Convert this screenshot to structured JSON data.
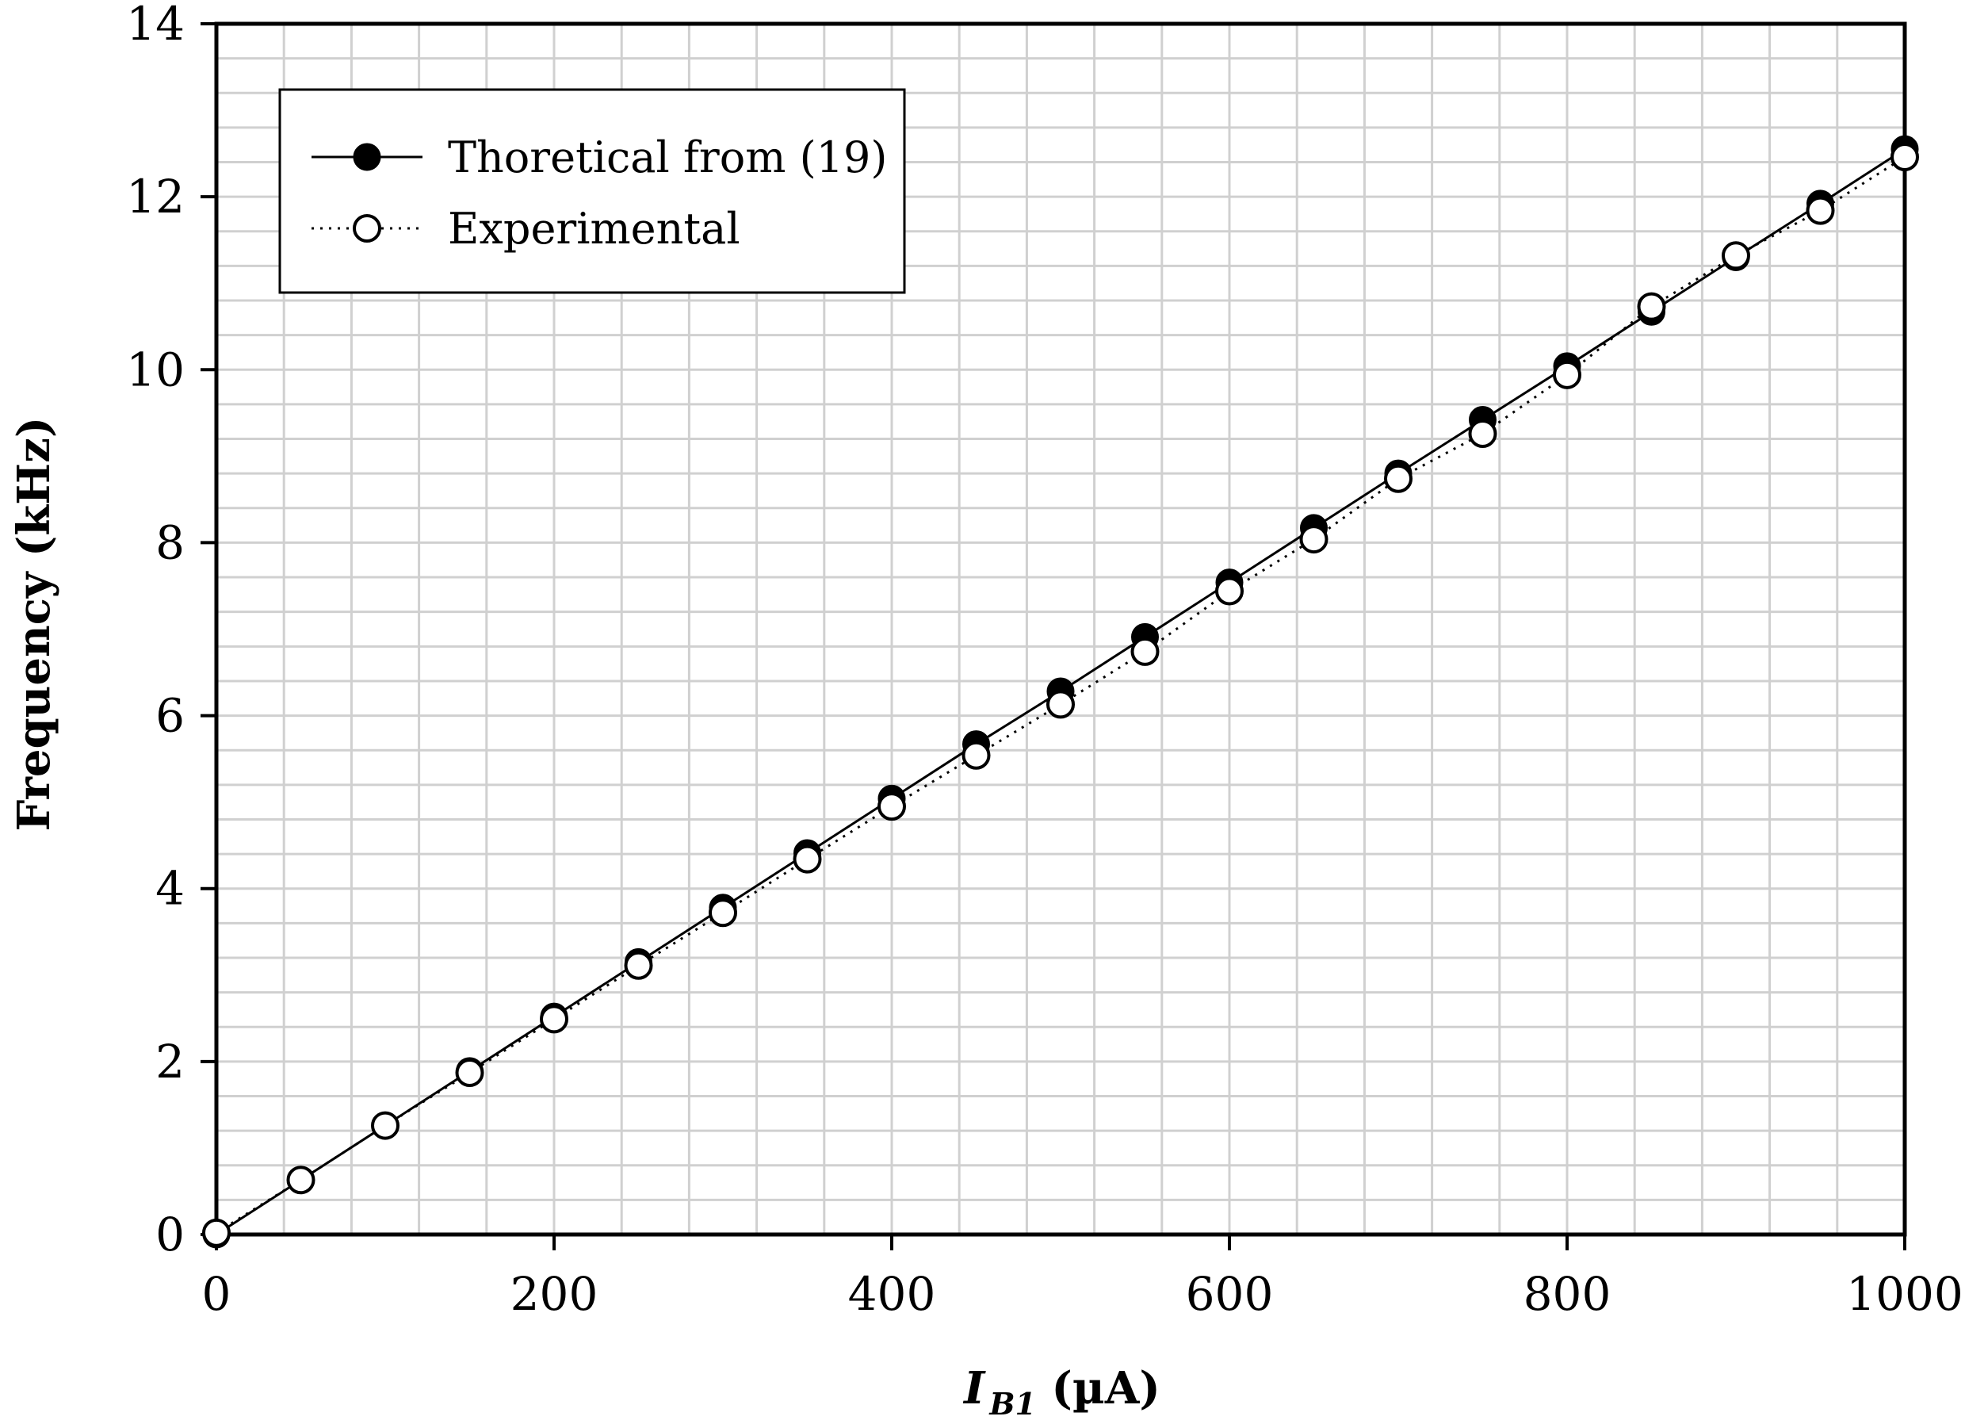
{
  "chart_data": {
    "type": "line",
    "x": [
      0,
      50,
      100,
      150,
      200,
      250,
      300,
      350,
      400,
      450,
      500,
      550,
      600,
      650,
      700,
      750,
      800,
      850,
      900,
      950,
      1000
    ],
    "series": [
      {
        "name": "Thoretical from (19)",
        "values": [
          0,
          0.63,
          1.26,
          1.89,
          2.52,
          3.15,
          3.78,
          4.41,
          5.04,
          5.67,
          6.28,
          6.91,
          7.54,
          8.17,
          8.8,
          9.42,
          10.04,
          10.67,
          11.3,
          11.92,
          12.55
        ],
        "style": "solid",
        "marker": "filled-circle",
        "color": "#000000"
      },
      {
        "name": "Experimental",
        "values": [
          0.02,
          0.63,
          1.26,
          1.87,
          2.49,
          3.11,
          3.72,
          4.34,
          4.95,
          5.54,
          6.13,
          6.74,
          7.44,
          8.04,
          8.74,
          9.26,
          9.94,
          10.73,
          11.32,
          11.84,
          12.46
        ],
        "style": "dotted",
        "marker": "open-circle",
        "color": "#000000"
      }
    ],
    "title": "",
    "xlabel": "I",
    "xlabel_subscript": "B1",
    "xlabel_unit": " (µA)",
    "ylabel": "Frequency (kHz)",
    "xlim": [
      0,
      1000
    ],
    "ylim": [
      0,
      14
    ],
    "xticks": [
      0,
      200,
      400,
      600,
      800,
      1000
    ],
    "yticks": [
      0,
      2,
      4,
      6,
      8,
      10,
      12,
      14
    ],
    "grid": true,
    "legend_position": "top-left"
  }
}
